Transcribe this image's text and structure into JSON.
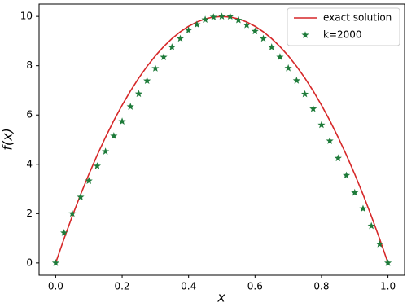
{
  "chart_data": {
    "type": "line",
    "xlabel": "x",
    "ylabel": "f(x)",
    "xlim": [
      -0.05,
      1.05
    ],
    "ylim": [
      -0.5,
      10.5
    ],
    "xticks": [
      {
        "value": 0,
        "label": "0.0"
      },
      0.2,
      0.4,
      0.6,
      0.8,
      {
        "value": 1,
        "label": "1.0"
      }
    ],
    "yticks": [
      0,
      2,
      4,
      6,
      8,
      10
    ],
    "legend": "upper right",
    "x": [
      0,
      0.025,
      0.05,
      0.075,
      0.1,
      0.125,
      0.15,
      0.175,
      0.2,
      0.225,
      0.25,
      0.275,
      0.3,
      0.325,
      0.35,
      0.375,
      0.4,
      0.425,
      0.45,
      0.475,
      0.5,
      0.525,
      0.55,
      0.575,
      0.6,
      0.625,
      0.65,
      0.675,
      0.7,
      0.725,
      0.75,
      0.775,
      0.8,
      0.825,
      0.85,
      0.875,
      0.9,
      0.925,
      0.95,
      0.975,
      1
    ],
    "series": [
      {
        "name": "exact solution",
        "color": "#d62728",
        "marker": "none",
        "values": [
          0,
          0.975,
          1.9,
          2.775,
          3.6,
          4.375,
          5.1,
          5.775,
          6.4,
          6.975,
          7.5,
          7.975,
          8.4,
          8.775,
          9.1,
          9.375,
          9.6,
          9.775,
          9.9,
          9.975,
          10,
          9.975,
          9.9,
          9.775,
          9.6,
          9.375,
          9.1,
          8.775,
          8.4,
          7.975,
          7.5,
          6.975,
          6.4,
          5.775,
          5.1,
          4.375,
          3.6,
          2.775,
          1.9,
          0.975,
          0
        ]
      },
      {
        "name": "k=2000",
        "color": "#1e7b3a",
        "marker": "star",
        "values": [
          0,
          1.22,
          2.0,
          2.67,
          3.33,
          3.93,
          4.52,
          5.15,
          5.74,
          6.34,
          6.86,
          7.39,
          7.89,
          8.35,
          8.75,
          9.1,
          9.44,
          9.67,
          9.87,
          9.97,
          10,
          10,
          9.85,
          9.65,
          9.4,
          9.1,
          8.75,
          8.35,
          7.9,
          7.4,
          6.85,
          6.25,
          5.6,
          4.95,
          4.25,
          3.55,
          2.85,
          2.2,
          1.5,
          0.76,
          0
        ]
      }
    ]
  }
}
